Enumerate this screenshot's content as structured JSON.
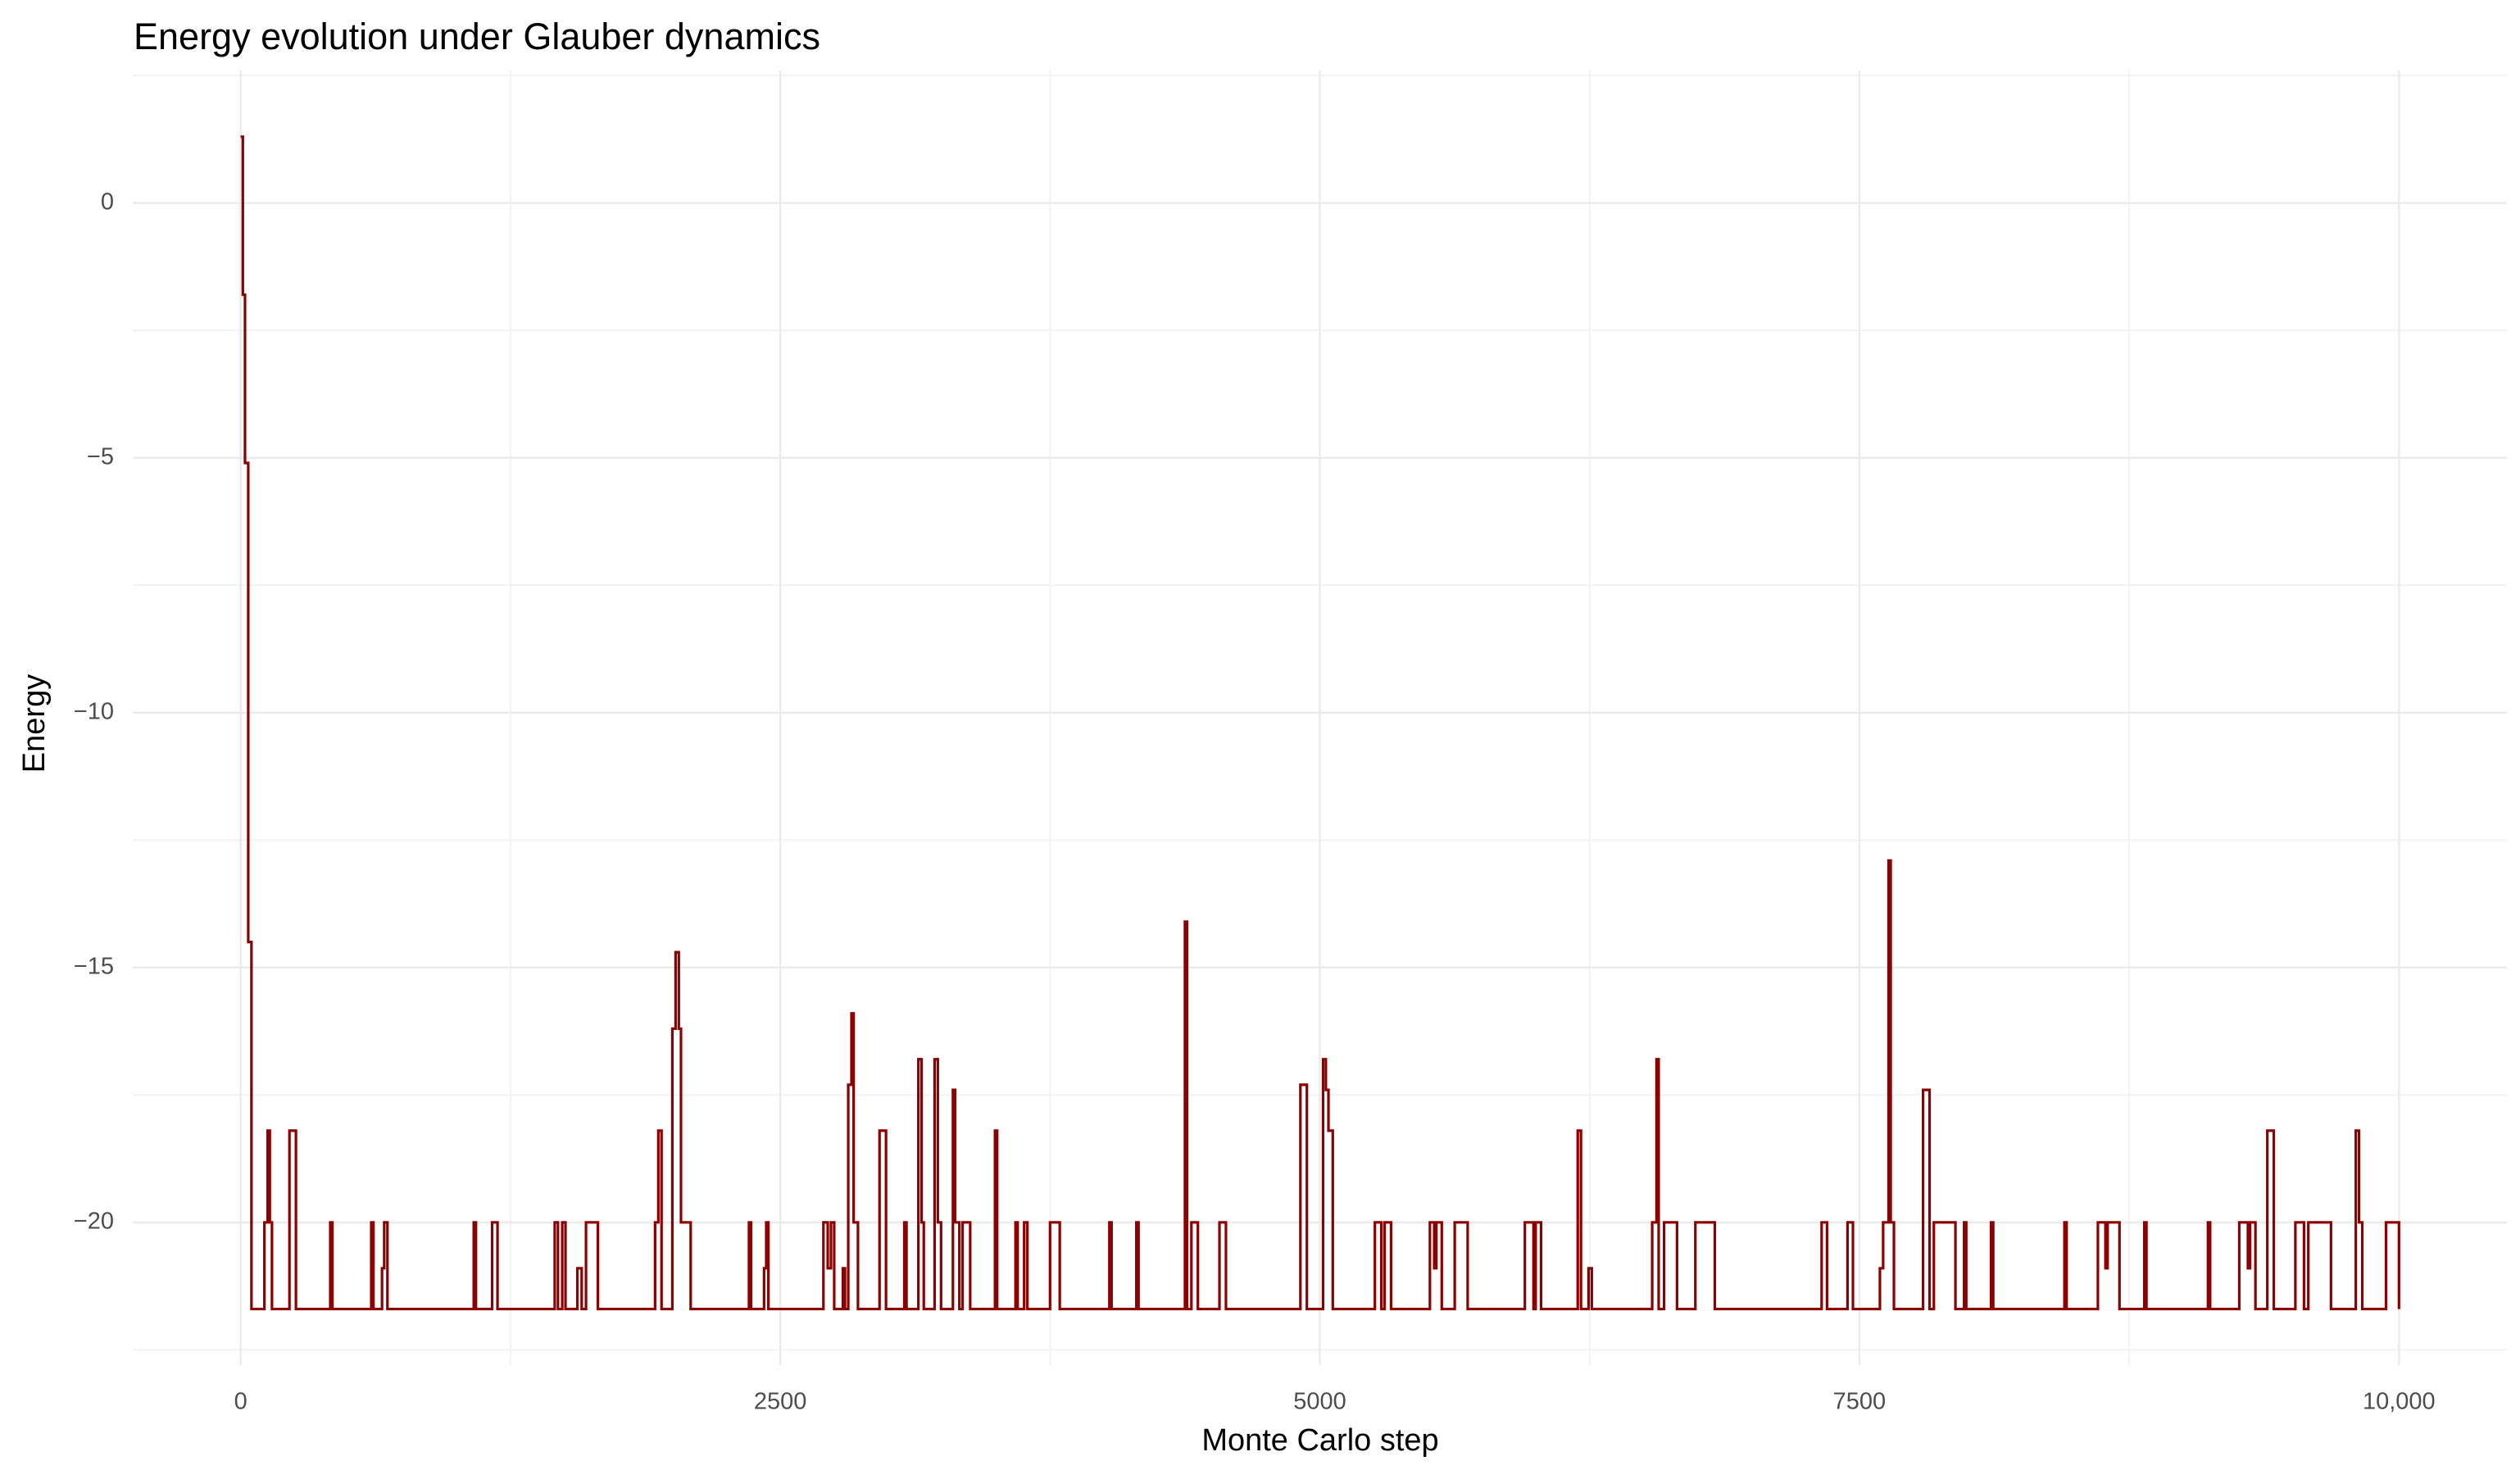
{
  "chart_data": {
    "type": "line",
    "step": "hv",
    "title": "Energy evolution under Glauber dynamics",
    "x_label": "Monte Carlo step",
    "y_label": "Energy",
    "color": "#8b0000",
    "grid": true,
    "xlim": [
      -500,
      10500
    ],
    "ylim": [
      -22.8,
      2.6
    ],
    "xticks": [
      0,
      2500,
      5000,
      7500,
      {
        "value": 10000,
        "label": "10,000"
      }
    ],
    "yticks": [
      {
        "value": -20,
        "label": "−20"
      },
      {
        "value": -15,
        "label": "−15"
      },
      {
        "value": -10,
        "label": "−10"
      },
      {
        "value": -5,
        "label": "−5"
      },
      0
    ],
    "x": [
      0,
      10,
      20,
      35,
      50,
      110,
      125,
      135,
      145,
      226,
      256,
      415,
      425,
      605,
      615,
      655,
      665,
      680,
      1080,
      1090,
      1165,
      1190,
      1455,
      1470,
      1490,
      1505,
      1560,
      1580,
      1600,
      1655,
      1920,
      1935,
      1950,
      2000,
      2015,
      2030,
      2040,
      2085,
      2355,
      2365,
      2425,
      2435,
      2445,
      2700,
      2720,
      2735,
      2750,
      2790,
      2800,
      2815,
      2830,
      2840,
      2860,
      2960,
      2990,
      3075,
      3085,
      3140,
      3155,
      3165,
      3215,
      3230,
      3245,
      3300,
      3310,
      3330,
      3345,
      3380,
      3495,
      3505,
      3590,
      3600,
      3630,
      3645,
      3750,
      3795,
      4025,
      4035,
      4150,
      4160,
      4375,
      4385,
      4405,
      4435,
      4535,
      4565,
      4910,
      4940,
      5015,
      5028,
      5040,
      5060,
      5255,
      5285,
      5300,
      5330,
      5510,
      5530,
      5540,
      5565,
      5625,
      5685,
      5950,
      5990,
      6000,
      6025,
      6195,
      6210,
      6245,
      6260,
      6540,
      6560,
      6570,
      6595,
      6655,
      6740,
      6830,
      7325,
      7350,
      7445,
      7470,
      7595,
      7610,
      7635,
      7645,
      7660,
      7795,
      7825,
      7845,
      7945,
      7985,
      7995,
      8110,
      8120,
      8450,
      8460,
      8605,
      8640,
      8650,
      8705,
      8820,
      8830,
      9115,
      9125,
      9260,
      9300,
      9310,
      9335,
      9390,
      9420,
      9520,
      9560,
      9580,
      9685,
      9800,
      9815,
      9830,
      9940,
      10000
    ],
    "values": [
      1.3,
      -1.8,
      -5.1,
      -14.5,
      -21.7,
      -20,
      -18.2,
      -20,
      -21.7,
      -18.2,
      -21.7,
      -20,
      -21.7,
      -20,
      -21.7,
      -20.9,
      -20,
      -21.7,
      -20,
      -21.7,
      -20,
      -21.7,
      -20,
      -21.7,
      -20,
      -21.7,
      -20.9,
      -21.7,
      -20,
      -21.7,
      -20,
      -18.2,
      -21.7,
      -16.2,
      -14.7,
      -16.2,
      -20,
      -21.7,
      -20,
      -21.7,
      -20.9,
      -20,
      -21.7,
      -20,
      -20.9,
      -20,
      -21.7,
      -20.9,
      -21.7,
      -17.3,
      -15.9,
      -20,
      -21.7,
      -18.2,
      -21.7,
      -20,
      -21.7,
      -16.8,
      -20,
      -21.7,
      -16.8,
      -20,
      -21.7,
      -17.4,
      -20,
      -21.7,
      -20,
      -21.7,
      -18.2,
      -21.7,
      -20,
      -21.7,
      -20,
      -21.7,
      -20,
      -21.7,
      -20,
      -21.7,
      -20,
      -21.7,
      -14.1,
      -21.7,
      -20,
      -21.7,
      -20,
      -21.7,
      -17.3,
      -21.7,
      -16.8,
      -17.4,
      -18.2,
      -21.7,
      -20,
      -21.7,
      -20,
      -21.7,
      -20,
      -20.9,
      -20,
      -21.7,
      -20,
      -21.7,
      -20,
      -21.7,
      -20,
      -21.7,
      -18.2,
      -21.7,
      -20.9,
      -21.7,
      -20,
      -16.8,
      -21.7,
      -20,
      -21.7,
      -20,
      -21.7,
      -20,
      -21.7,
      -20,
      -21.7,
      -20.9,
      -20,
      -12.9,
      -20,
      -21.7,
      -17.4,
      -21.7,
      -20,
      -21.7,
      -20,
      -21.7,
      -20,
      -21.7,
      -20,
      -21.7,
      -20,
      -20.9,
      -20,
      -21.7,
      -20,
      -21.7,
      -20,
      -21.7,
      -20,
      -20.9,
      -20,
      -21.7,
      -18.2,
      -21.7,
      -20,
      -21.7,
      -20,
      -21.7,
      -18.2,
      -20,
      -21.7,
      -20,
      -21.7
    ]
  }
}
